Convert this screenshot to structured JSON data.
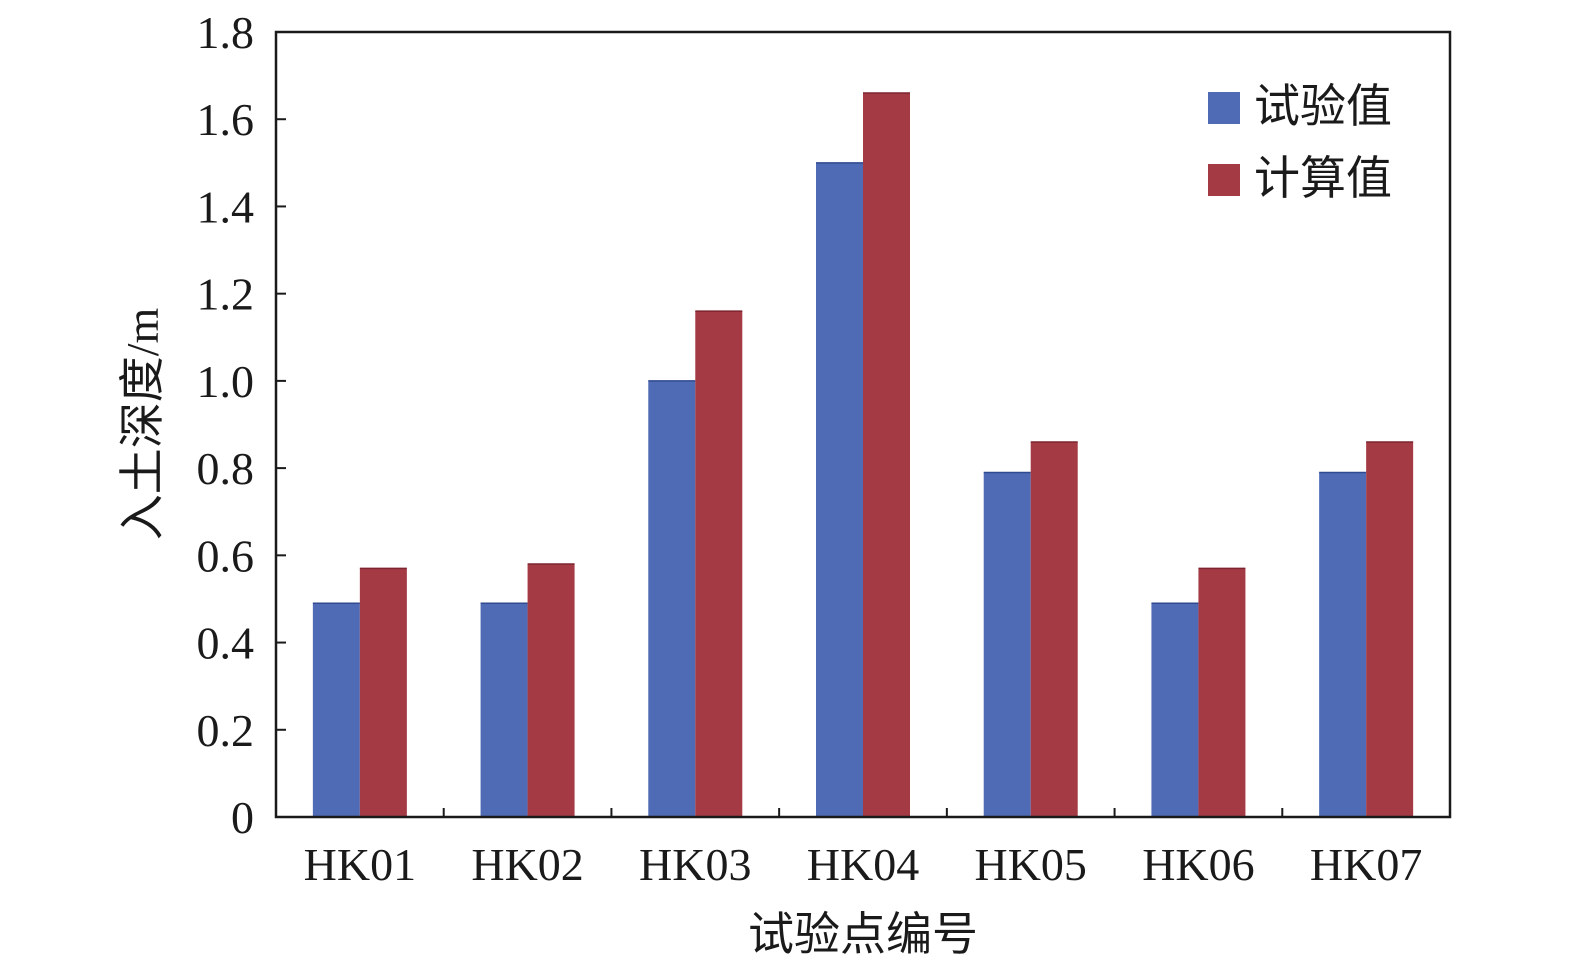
{
  "chart_data": {
    "type": "bar",
    "title": "",
    "xlabel": "试验点编号",
    "ylabel": "入土深度/m",
    "categories": [
      "HK01",
      "HK02",
      "HK03",
      "HK04",
      "HK05",
      "HK06",
      "HK07"
    ],
    "series": [
      {
        "name": "试验值",
        "color": "#4f6bb5",
        "values": [
          0.49,
          0.49,
          1.0,
          1.5,
          0.79,
          0.49,
          0.79
        ]
      },
      {
        "name": "计算值",
        "color": "#a33a44",
        "values": [
          0.57,
          0.58,
          1.16,
          1.66,
          0.86,
          0.57,
          0.86
        ]
      }
    ],
    "ylim": [
      0,
      1.8
    ],
    "yticks": [
      "0",
      "0.2",
      "0.4",
      "0.6",
      "0.8",
      "1.0",
      "1.2",
      "1.4",
      "1.6",
      "1.8"
    ],
    "grid": false,
    "legend_position": "top-right"
  }
}
